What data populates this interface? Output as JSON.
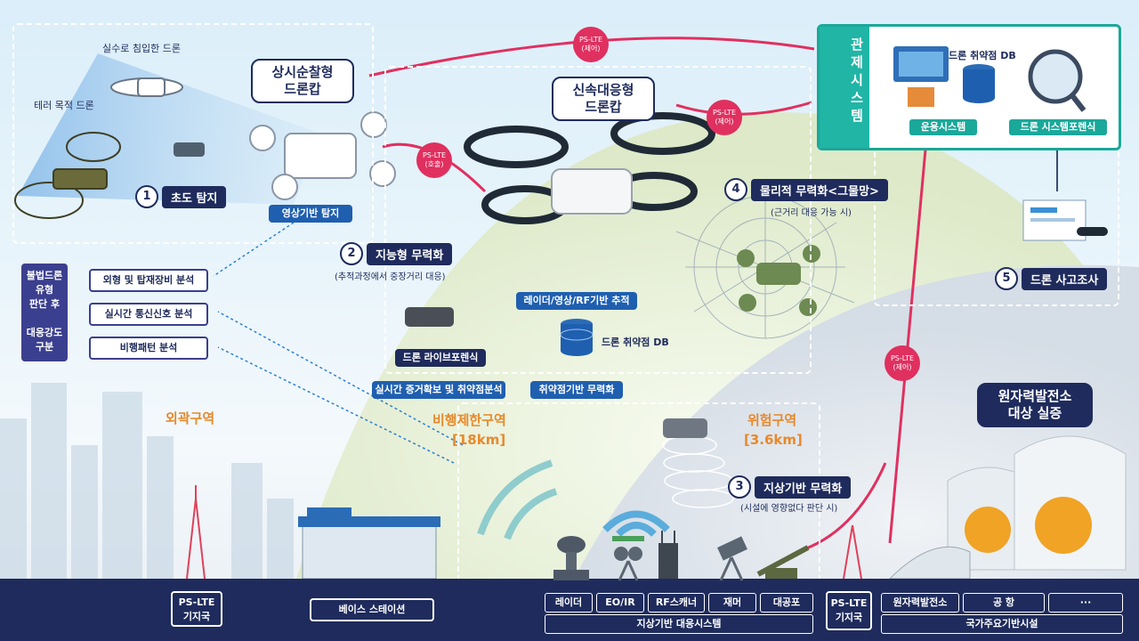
{
  "zones": {
    "outer": "외곽구역",
    "restricted": "비행제한구역",
    "restricted_range": "[18km]",
    "danger": "위험구역",
    "danger_range": "[3.6km]"
  },
  "drones_labels": {
    "accidental": "실수로 침입한 드론",
    "terror": "테러 목적 드론"
  },
  "callouts": {
    "patrol_drone": "상시순찰형\n드론캅",
    "rapid_drone": "신속대응형\n드론캅",
    "nuclear": "원자력발전소\n대상 실증"
  },
  "steps": [
    {
      "num": "1",
      "label": "초도 탐지"
    },
    {
      "num": "2",
      "label": "지능형 무력화"
    },
    {
      "num": "3",
      "label": "지상기반 무력화"
    },
    {
      "num": "4",
      "label": "물리적 무력화<그물망>"
    },
    {
      "num": "5",
      "label": "드론 사고조사"
    }
  ],
  "step_notes": {
    "s2": "(추적과정에서 중장거리 대응)",
    "s3": "(시설에 영향없다 판단 시)",
    "s4": "(근거리 대응 가능 시)"
  },
  "tags": {
    "video_detect": "영상기반 탐지",
    "tracking": "레이더/영상/RF기반 추적",
    "vuln_db": "드론 취약점 DB",
    "live_forensic": "드론 라이브포렌식",
    "realtime_evidence": "실시간 증거확보 및 취약점분석",
    "vuln_neutralize": "취약점기반 무력화"
  },
  "analysis": {
    "judge": "불법드론\n유형\n판단 후\n\n대응강도\n구분",
    "items": [
      "외형 및 탑재장비 분석",
      "실시간 통신신호 분석",
      "비행패턴 분석"
    ]
  },
  "control": {
    "title": "관제시스템",
    "db": "드론 취약점 DB",
    "ops": "운용시스템",
    "forensic": "드론 시스템포렌식"
  },
  "pslte": {
    "call": "PS-LTE\n(호출)",
    "ctrl": "PS-LTE\n(제어)"
  },
  "ground": {
    "station_left": "PS-LTE\n기지국",
    "base": "베이스 스테이션",
    "station_right": "PS-LTE\n기지국",
    "equipment": [
      "레이더",
      "EO/IR",
      "RF스캐너",
      "재머",
      "대공포"
    ],
    "ground_system": "지상기반 대응시스템",
    "facilities": [
      "원자력발전소",
      "공 항",
      "···"
    ],
    "facility_group": "국가주요기반시설"
  },
  "colors": {
    "navy": "#1e2b5c",
    "accent_orange": "#e8892b",
    "pslte_red": "#e03060",
    "teal": "#1aa89a"
  }
}
